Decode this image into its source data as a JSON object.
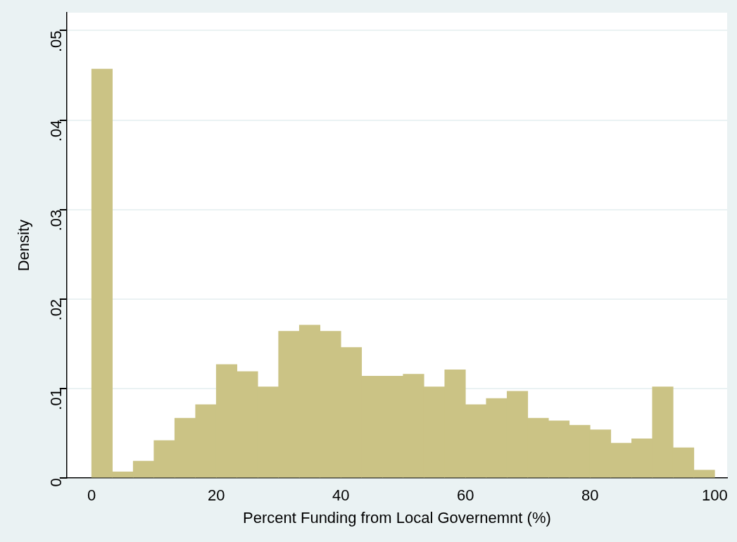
{
  "chart_data": {
    "type": "histogram",
    "xlabel": "Percent Funding from Local Governemnt (%)",
    "ylabel": "Density",
    "bins": [
      0,
      3.33,
      6.67,
      10,
      13.33,
      16.67,
      20,
      23.33,
      26.67,
      30,
      33.33,
      36.67,
      40,
      43.33,
      46.67,
      50,
      53.33,
      56.67,
      60,
      63.33,
      66.67,
      70,
      73.33,
      76.67,
      80,
      83.33,
      86.67,
      90,
      93.33,
      96.67,
      100
    ],
    "values": [
      0.0457,
      0.0007,
      0.0019,
      0.0042,
      0.0067,
      0.0082,
      0.0127,
      0.0119,
      0.0102,
      0.0164,
      0.0171,
      0.0164,
      0.0146,
      0.0114,
      0.0114,
      0.0116,
      0.0102,
      0.0121,
      0.0082,
      0.0089,
      0.0097,
      0.0067,
      0.0064,
      0.0059,
      0.0054,
      0.0039,
      0.0044,
      0.0102,
      0.0034,
      0.0009
    ],
    "color": "#cbc385",
    "xlim": [
      -4,
      102
    ],
    "xticks": [
      0,
      20,
      40,
      60,
      80,
      100
    ],
    "ylim": [
      0,
      0.052
    ],
    "yticks": [
      {
        "value": 0,
        "label": "0"
      },
      {
        "value": 0.01,
        "label": ".01"
      },
      {
        "value": 0.02,
        "label": ".02"
      },
      {
        "value": 0.03,
        "label": ".03"
      },
      {
        "value": 0.04,
        "label": ".04"
      },
      {
        "value": 0.05,
        "label": ".05"
      }
    ],
    "grid": "y",
    "legend": false
  }
}
